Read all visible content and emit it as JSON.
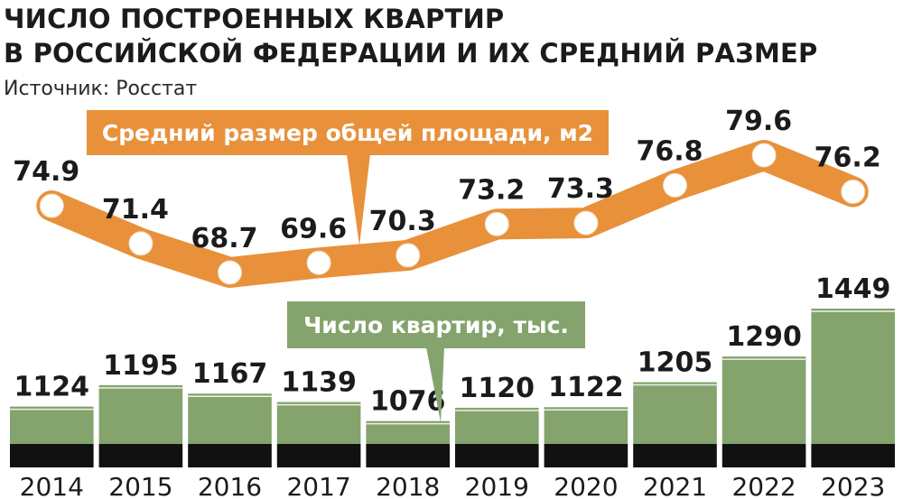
{
  "title_line1": "ЧИСЛО ПОСТРОЕННЫХ КВАРТИР",
  "title_line2": "В РОССИЙСКОЙ ФЕДЕРАЦИИ  И ИХ СРЕДНИЙ РАЗМЕР",
  "source": "Источник: Росстат",
  "colors": {
    "orange": "#e8913a",
    "green": "#84a36d",
    "base": "#111111",
    "text": "#1b1b1b"
  },
  "chart_data": [
    {
      "type": "line",
      "x": [
        "2014",
        "2015",
        "2016",
        "2017",
        "2018",
        "2019",
        "2020",
        "2021",
        "2022",
        "2023"
      ],
      "series": [
        {
          "name": "Средний размер общей площади, м2",
          "values": [
            74.9,
            71.4,
            68.7,
            69.6,
            70.3,
            73.2,
            73.3,
            76.8,
            79.6,
            76.2
          ],
          "labels": [
            "74.9",
            "71.4",
            "68.7",
            "69.6",
            "70.3",
            "73.2",
            "73.3",
            "76.8",
            "79.6",
            "76.2"
          ]
        }
      ]
    },
    {
      "type": "bar",
      "categories": [
        "2014",
        "2015",
        "2016",
        "2017",
        "2018",
        "2019",
        "2020",
        "2021",
        "2022",
        "2023"
      ],
      "series": [
        {
          "name": "Число квартир, тыс.",
          "values": [
            1124,
            1195,
            1167,
            1139,
            1076,
            1120,
            1122,
            1205,
            1290,
            1449
          ],
          "labels": [
            "1124",
            "1195",
            "1167",
            "1139",
            "1076",
            "1120",
            "1122",
            "1205",
            "1290",
            "1449"
          ]
        }
      ]
    }
  ]
}
